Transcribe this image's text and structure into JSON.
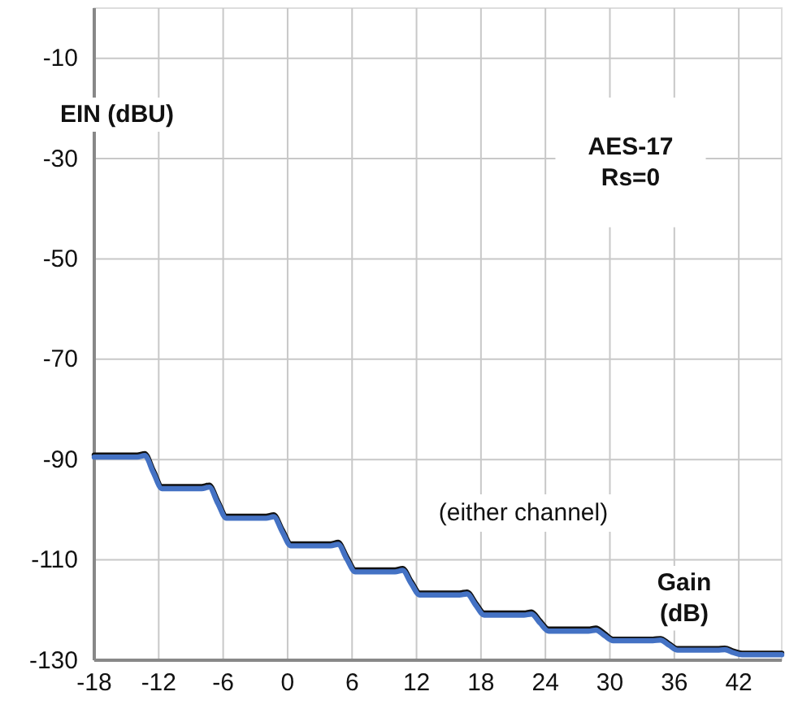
{
  "chart_data": {
    "type": "line",
    "xlabel": "Gain\n(dB)",
    "ylabel": "EIN (dBU)",
    "annotations": [
      "AES-17\nRs=0",
      "(either channel)"
    ],
    "xlim": [
      -18,
      46
    ],
    "ylim": [
      -130,
      0
    ],
    "xticks": [
      -18,
      -12,
      -6,
      0,
      6,
      12,
      18,
      24,
      30,
      36,
      42
    ],
    "yticks": [
      -10,
      -30,
      -50,
      -70,
      -90,
      -110,
      -130
    ],
    "grid": true,
    "line_style": "solid",
    "series": [
      {
        "color": "#111111",
        "x": [
          -18,
          -14,
          -13.3,
          -12.5,
          -11.7,
          -8,
          -7.3,
          -6.5,
          -5.7,
          -2,
          -1.3,
          -0.5,
          0.3,
          4,
          4.7,
          5.5,
          6.3,
          10,
          10.7,
          11.5,
          12.3,
          16,
          16.7,
          17.5,
          18.3,
          22,
          22.7,
          23.5,
          24.3,
          28,
          28.7,
          29.5,
          30.3,
          34,
          34.7,
          35.5,
          36.3,
          40,
          40.7,
          41.5,
          42.3,
          46
        ],
        "values": [
          -89.1,
          -89.1,
          -88.8,
          -92.2,
          -95.4,
          -95.4,
          -95.1,
          -98.3,
          -101.3,
          -101.3,
          -101,
          -104,
          -106.8,
          -106.8,
          -106.5,
          -109.4,
          -112,
          -112,
          -111.7,
          -114.3,
          -116.6,
          -116.6,
          -116.4,
          -118.6,
          -120.6,
          -120.6,
          -120.4,
          -122.2,
          -123.8,
          -123.8,
          -123.6,
          -124.7,
          -125.8,
          -125.8,
          -125.7,
          -126.7,
          -127.7,
          -127.7,
          -127.6,
          -128.2,
          -128.6,
          -128.6
        ]
      },
      {
        "color": "#4472c4",
        "x": [
          -18,
          -14,
          -13.3,
          -12.5,
          -11.7,
          -8,
          -7.3,
          -6.5,
          -5.7,
          -2,
          -1.3,
          -0.5,
          0.3,
          4,
          4.7,
          5.5,
          6.3,
          10,
          10.7,
          11.5,
          12.3,
          16,
          16.7,
          17.5,
          18.3,
          22,
          22.7,
          23.5,
          24.3,
          28,
          28.7,
          29.5,
          30.3,
          34,
          34.7,
          35.5,
          36.3,
          40,
          40.7,
          41.5,
          42.3,
          46
        ],
        "values": [
          -89.5,
          -89.5,
          -89.2,
          -92.6,
          -95.8,
          -95.8,
          -95.5,
          -98.7,
          -101.7,
          -101.7,
          -101.4,
          -104.4,
          -107.2,
          -107.2,
          -106.9,
          -109.8,
          -112.4,
          -112.4,
          -112.1,
          -114.7,
          -117,
          -117,
          -116.8,
          -119,
          -121,
          -121,
          -120.8,
          -122.6,
          -124.2,
          -124.2,
          -124,
          -125.1,
          -126.1,
          -126.1,
          -126,
          -127,
          -128,
          -128,
          -127.9,
          -128.5,
          -128.9,
          -128.9
        ]
      }
    ]
  }
}
